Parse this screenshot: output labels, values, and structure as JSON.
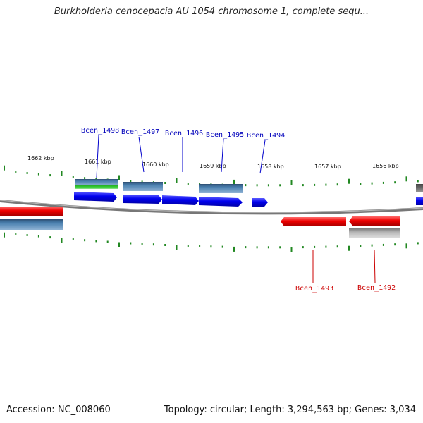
{
  "title": "Burkholderia cenocepacia AU 1054 chromosome 1, complete sequ...",
  "footer": {
    "accession": "Accession: NC_008060",
    "summary": "Topology: circular; Length: 3,294,563 bp; Genes: 3,034"
  },
  "colors": {
    "forward_gene": "#0000ee",
    "reverse_gene": "#ee0000",
    "label_forward": "#0000bb",
    "label_reverse": "#cc0000",
    "annotation_steel": "#4a80b0",
    "annotation_green": "#33cc33",
    "annotation_gray": "#b8b8b8",
    "backbone": "#888888",
    "ticks": "#228822"
  },
  "kbp_ticks": [
    "1662 kbp",
    "1661 kbp",
    "1660 kbp",
    "1659 kbp",
    "1658 kbp",
    "1657 kbp",
    "1656 kbp"
  ],
  "gene_labels": {
    "forward": [
      "Bcen_1498",
      "Bcen_1497",
      "Bcen_1496",
      "Bcen_1495",
      "Bcen_1494"
    ],
    "reverse": [
      "Bcen_1493",
      "Bcen_1492"
    ]
  }
}
